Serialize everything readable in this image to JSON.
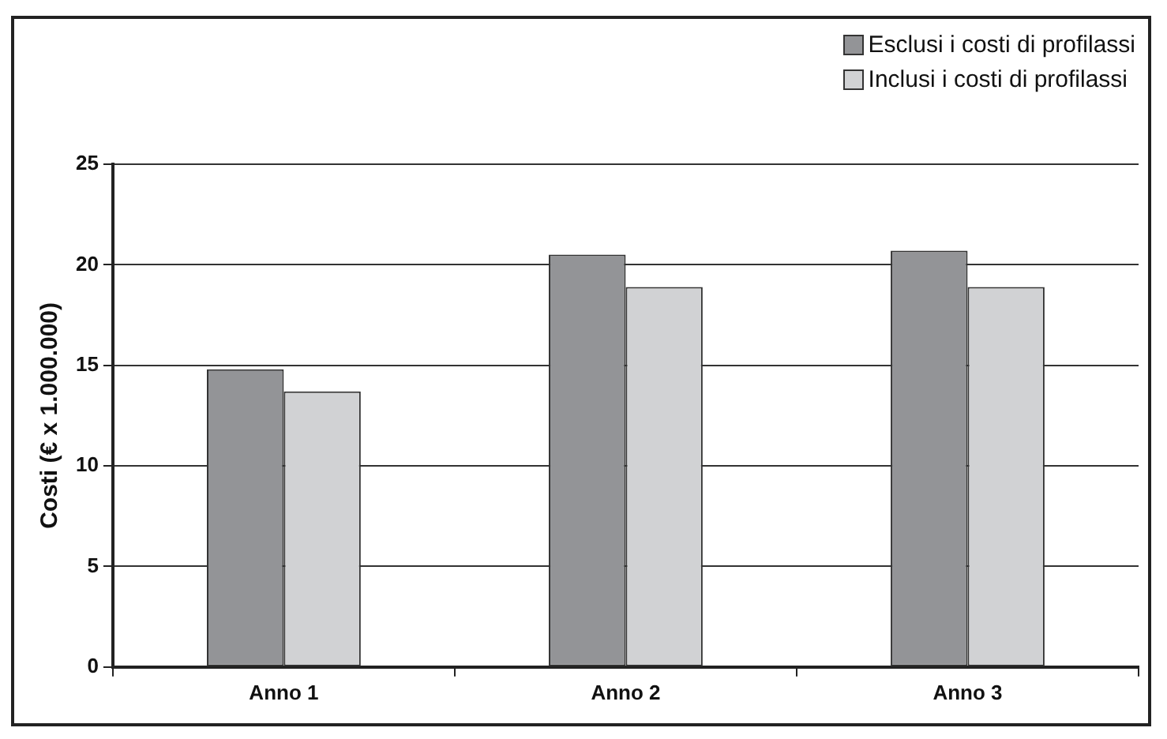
{
  "chart_data": {
    "type": "bar",
    "ylabel": "Costi (€ x 1.000.000)",
    "categories": [
      "Anno 1",
      "Anno 2",
      "Anno 3"
    ],
    "series": [
      {
        "name": "Esclusi i costi di profilassi",
        "color": "#939497",
        "values": [
          14.8,
          20.5,
          20.7
        ]
      },
      {
        "name": "Inclusi i costi di profilassi",
        "color": "#d1d2d4",
        "values": [
          13.7,
          18.9,
          18.9
        ]
      }
    ],
    "ylim": [
      0,
      25
    ],
    "yticks": [
      0,
      5,
      10,
      15,
      20,
      25
    ],
    "grid": "y",
    "legend": "top right"
  }
}
